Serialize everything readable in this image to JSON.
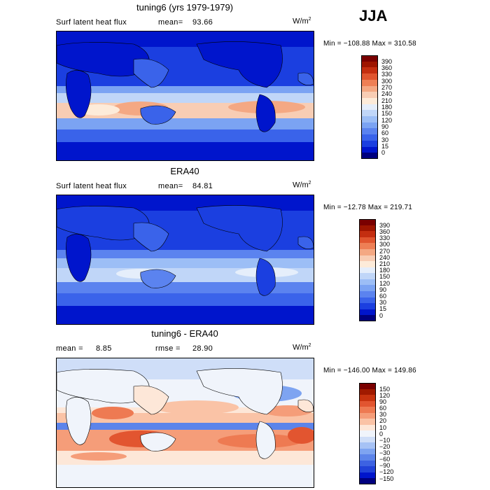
{
  "season": "JJA",
  "colors": {
    "full": [
      "#00007f",
      "#0015cc",
      "#1b3fe0",
      "#3a63ea",
      "#5b83ef",
      "#7ba3f3",
      "#9cbef6",
      "#c0d6f8",
      "#e5eefb",
      "#fdebd9",
      "#f8cdb4",
      "#f4a883",
      "#ee7f55",
      "#e0552f",
      "#c42e10",
      "#9e1500",
      "#7a0000"
    ],
    "diff": [
      "#00007f",
      "#0015cc",
      "#2142d8",
      "#3d62e2",
      "#5c84ea",
      "#7ea4f1",
      "#a6c2f5",
      "#cfdef8",
      "#f0f4fb",
      "#fde7d8",
      "#fac3a6",
      "#f59d79",
      "#ee7a52",
      "#e25530",
      "#c7330f",
      "#a01a00",
      "#7a0000"
    ]
  },
  "panels": [
    {
      "title": "tuning6 (yrs 1979-1979)",
      "left_label": "Surf latent heat flux",
      "stat1_label": "mean=",
      "stat1_value": "93.66",
      "stat2_label": "",
      "stat2_value": "",
      "unit": "W/m",
      "unit_sup": "2",
      "min_max": "Min = −108.88  Max = 310.58",
      "colorbar": {
        "labels": [
          "390",
          "360",
          "330",
          "300",
          "270",
          "240",
          "210",
          "180",
          "150",
          "120",
          "90",
          "60",
          "30",
          "15",
          "0"
        ]
      }
    },
    {
      "title": "ERA40",
      "left_label": "Surf latent heat flux",
      "stat1_label": "mean=",
      "stat1_value": "84.81",
      "stat2_label": "",
      "stat2_value": "",
      "unit": "W/m",
      "unit_sup": "2",
      "min_max": "Min = −12.78  Max = 219.71",
      "colorbar": {
        "labels": [
          "390",
          "360",
          "330",
          "300",
          "270",
          "240",
          "210",
          "180",
          "150",
          "120",
          "90",
          "60",
          "30",
          "15",
          "0"
        ]
      }
    },
    {
      "title": "tuning6 - ERA40",
      "left_label": "mean =",
      "stat1_label": "",
      "stat1_value": "8.85",
      "stat2_label": "rmse =",
      "stat2_value": "28.90",
      "unit": "W/m",
      "unit_sup": "2",
      "min_max": "Min = −146.00  Max = 149.86",
      "colorbar": {
        "labels": [
          "150",
          "120",
          "90",
          "60",
          "30",
          "20",
          "10",
          "0",
          "−10",
          "−20",
          "−30",
          "−60",
          "−90",
          "−120",
          "−150"
        ]
      }
    }
  ]
}
